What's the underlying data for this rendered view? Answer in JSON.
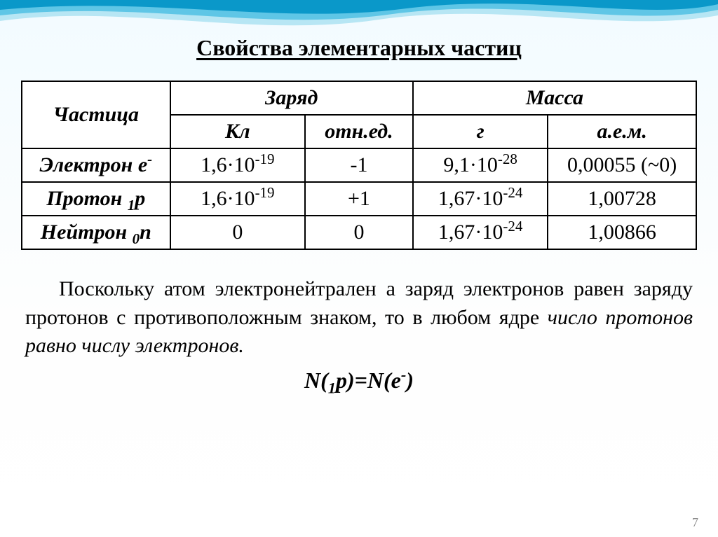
{
  "title": "Свойства элементарных частиц",
  "title_fontsize": 32,
  "title_color": "#000000",
  "table": {
    "header_fontsize": 30,
    "cell_fontsize": 30,
    "border_color": "#000000",
    "header_style": "italic-bold",
    "columns": {
      "particle": "Частица",
      "charge": "Заряд",
      "mass": "Масса",
      "charge_cl": "Кл",
      "charge_rel": "отн.ед.",
      "mass_g": "г",
      "mass_amu": "а.е.м."
    },
    "rows": [
      {
        "particle_html": "Электрон e<sup>-</sup>",
        "charge_cl_html": "1,6·10<sup>-19</sup>",
        "charge_rel": "-1",
        "mass_g_html": "9,1·10<sup>-28</sup>",
        "mass_amu": "0,00055 (~0)"
      },
      {
        "particle_html": "Протон <sub>1</sub>p",
        "charge_cl_html": "1,6·10<sup>-19</sup>",
        "charge_rel": "+1",
        "mass_g_html": "1,67·10<sup>-24</sup>",
        "mass_amu": "1,00728"
      },
      {
        "particle_html": "Нейтрон <sub>0</sub>n",
        "charge_cl_html": "0",
        "charge_rel": "0",
        "mass_g_html": "1,67·10<sup>-24</sup>",
        "mass_amu": "1,00866"
      }
    ]
  },
  "paragraph_html": "Поскольку атом электронейтрален а заряд электронов равен заряду протонов с противоположным знаком, то в любом ядре <i>число протонов равно числу электронов.</i>",
  "paragraph_fontsize": 30,
  "formula_html": "N(<sub>1</sub>p)=N(e<sup>-</sup>)",
  "formula_fontsize": 32,
  "page_number": "7",
  "page_number_fontsize": 18,
  "background": {
    "gradient_from": "#f2fbff",
    "gradient_to": "#ffffff",
    "wave_colors": [
      "#0a98c9",
      "#5fc6e6",
      "#b7e6f4"
    ]
  }
}
